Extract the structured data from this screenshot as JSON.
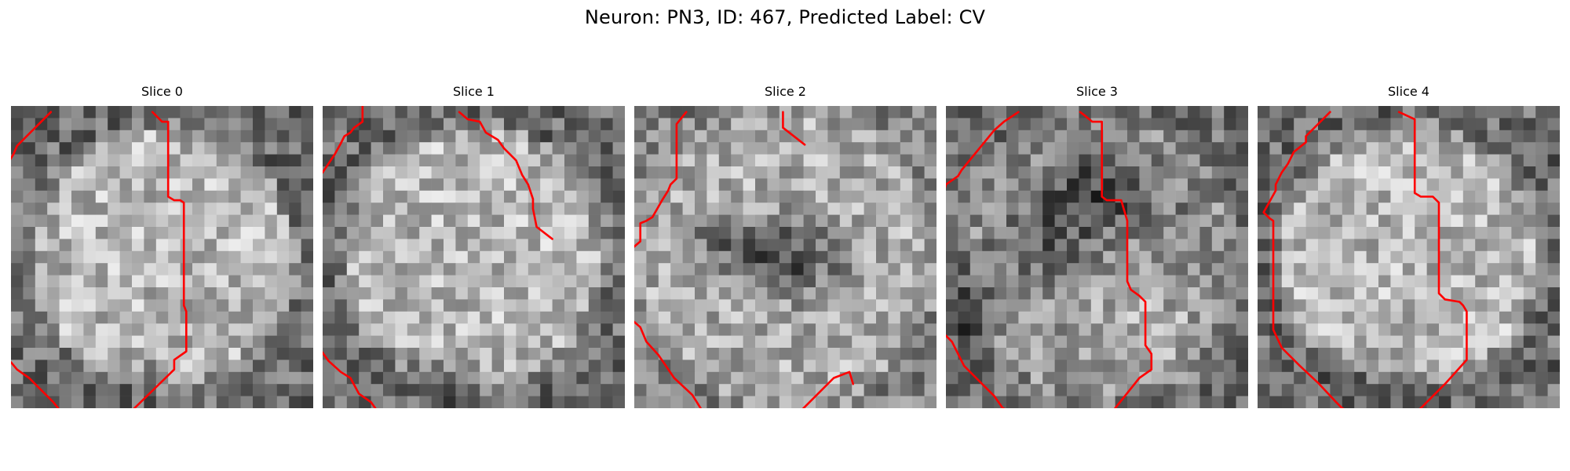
{
  "figure": {
    "title": "Neuron: PN3, ID: 467, Predicted Label: CV"
  },
  "colors": {
    "contour": "#ff0000",
    "background": "#ffffff"
  },
  "slices": [
    {
      "title": "Slice 0",
      "image": "grayscale-microscopy-patch",
      "pattern": "cell",
      "seed": 11,
      "contours": [
        [
          [
            2.8,
            0
          ],
          [
            0,
            2.8
          ],
          [
            -0.3,
            3.5
          ],
          [
            -0.8,
            4.3
          ],
          [
            -1,
            5
          ],
          [
            -1.6,
            5.6
          ],
          [
            -1.9,
            6.5
          ]
        ],
        [
          [
            11.2,
            0
          ],
          [
            12,
            0.8
          ],
          [
            12.5,
            0.8
          ],
          [
            12.5,
            7
          ],
          [
            13,
            7.3
          ],
          [
            13.5,
            7.3
          ],
          [
            13.8,
            7.5
          ],
          [
            13.8,
            16
          ],
          [
            14,
            16.5
          ],
          [
            14,
            19.8
          ],
          [
            13,
            20.5
          ],
          [
            13,
            21.3
          ],
          [
            9.2,
            25
          ]
        ],
        [
          [
            -2,
            19.5
          ],
          [
            -0.5,
            20.7
          ],
          [
            0,
            21.3
          ],
          [
            1,
            22
          ],
          [
            3,
            24
          ],
          [
            3.8,
            25
          ]
        ]
      ]
    },
    {
      "title": "Slice 1",
      "image": "grayscale-microscopy-patch",
      "pattern": "cell",
      "seed": 23,
      "contours": [
        [
          [
            2.8,
            -0.5
          ],
          [
            2.8,
            0.8
          ],
          [
            2.1,
            1.3
          ],
          [
            1.8,
            1.7
          ],
          [
            1.3,
            2
          ],
          [
            1,
            2.6
          ],
          [
            0.5,
            3.5
          ],
          [
            -0.5,
            5
          ],
          [
            -2,
            6.5
          ]
        ],
        [
          [
            10.8,
            0
          ],
          [
            11.5,
            0.6
          ],
          [
            12.5,
            0.8
          ],
          [
            13,
            1.7
          ],
          [
            14,
            2.3
          ],
          [
            14.5,
            3
          ],
          [
            15,
            3.5
          ],
          [
            15.5,
            4
          ],
          [
            16,
            5.2
          ],
          [
            16.5,
            6
          ],
          [
            16.9,
            7.2
          ],
          [
            16.9,
            8
          ],
          [
            17.2,
            9.5
          ],
          [
            18.5,
            10.5
          ]
        ],
        [
          [
            -2,
            17.8
          ],
          [
            -0.8,
            19.5
          ],
          [
            0,
            20.6
          ],
          [
            1,
            21.5
          ],
          [
            1.8,
            22
          ],
          [
            2.5,
            23.3
          ],
          [
            3.5,
            24
          ],
          [
            4,
            24.7
          ],
          [
            4.8,
            25
          ]
        ]
      ]
    },
    {
      "title": "Slice 2",
      "image": "grayscale-microscopy-patch",
      "pattern": "blob",
      "seed": 37,
      "contours": [
        [
          [
            3.8,
            0
          ],
          [
            3,
            1
          ],
          [
            3,
            5.5
          ],
          [
            2.5,
            6
          ],
          [
            2.3,
            6.5
          ],
          [
            1.8,
            7.3
          ],
          [
            1,
            8.7
          ],
          [
            0.5,
            9
          ],
          [
            0,
            9.2
          ],
          [
            0,
            10.7
          ],
          [
            -1.5,
            12
          ]
        ],
        [
          [
            11.8,
            0
          ],
          [
            11.8,
            1.3
          ],
          [
            13.6,
            2.7
          ]
        ],
        [
          [
            -1.5,
            16.5
          ],
          [
            0,
            17.8
          ],
          [
            0.5,
            19
          ],
          [
            1.5,
            20.1
          ],
          [
            2.8,
            22
          ],
          [
            4.3,
            23.4
          ],
          [
            5.3,
            25
          ]
        ],
        [
          [
            13,
            25
          ],
          [
            16,
            22
          ],
          [
            17.3,
            21.5
          ],
          [
            17.6,
            22.5
          ]
        ]
      ]
    },
    {
      "title": "Slice 3",
      "image": "grayscale-microscopy-patch",
      "pattern": "split",
      "seed": 53,
      "contours": [
        [
          [
            5.5,
            0
          ],
          [
            4.3,
            0.8
          ],
          [
            3.5,
            1.5
          ],
          [
            0.8,
            4.8
          ],
          [
            0.5,
            5.3
          ],
          [
            -0.5,
            6
          ],
          [
            -1,
            8
          ]
        ],
        [
          [
            10.6,
            0
          ],
          [
            11,
            0.3
          ],
          [
            11.6,
            0.8
          ],
          [
            12.4,
            0.8
          ],
          [
            12.4,
            7
          ],
          [
            12.8,
            7.3
          ],
          [
            13.3,
            7.3
          ],
          [
            14,
            7.3
          ],
          [
            14.5,
            9
          ],
          [
            14.5,
            14
          ],
          [
            14.8,
            14.7
          ],
          [
            15.5,
            15.2
          ],
          [
            16,
            15.7
          ],
          [
            16,
            19.3
          ],
          [
            16.5,
            20
          ],
          [
            16.5,
            21.3
          ],
          [
            15.5,
            22
          ],
          [
            13.5,
            24.5
          ]
        ],
        [
          [
            -2,
            17.5
          ],
          [
            -0.5,
            18.5
          ],
          [
            0,
            19
          ],
          [
            0.5,
            20
          ],
          [
            1,
            21
          ],
          [
            2,
            22
          ],
          [
            3.5,
            23.5
          ],
          [
            4.2,
            24.5
          ],
          [
            5.5,
            25
          ]
        ]
      ]
    },
    {
      "title": "Slice 4",
      "image": "grayscale-microscopy-patch",
      "pattern": "cell",
      "seed": 71,
      "contours": [
        [
          [
            5.5,
            0
          ],
          [
            3.5,
            2
          ],
          [
            3.5,
            2.5
          ],
          [
            2.5,
            3.3
          ],
          [
            2,
            4.3
          ],
          [
            1.5,
            5
          ],
          [
            1,
            6
          ],
          [
            1,
            6.5
          ],
          [
            0,
            8.3
          ],
          [
            0.5,
            8.8
          ],
          [
            0.8,
            9
          ],
          [
            0.8,
            18
          ],
          [
            1.5,
            19.5
          ],
          [
            3,
            21
          ],
          [
            4.5,
            22.4
          ],
          [
            6,
            24
          ],
          [
            6.5,
            24.5
          ],
          [
            7.5,
            25
          ]
        ],
        [
          [
            11.2,
            0
          ],
          [
            12.5,
            0.6
          ],
          [
            12.5,
            6.7
          ],
          [
            13,
            7
          ],
          [
            14,
            7
          ],
          [
            14.5,
            7.5
          ],
          [
            14.5,
            15
          ],
          [
            15,
            15.5
          ],
          [
            16.2,
            15.7
          ],
          [
            16.5,
            16
          ],
          [
            16.8,
            16.5
          ],
          [
            16.8,
            20.5
          ],
          [
            15,
            22.5
          ],
          [
            14,
            23.5
          ],
          [
            13,
            24.5
          ],
          [
            12.3,
            25
          ]
        ]
      ]
    }
  ]
}
